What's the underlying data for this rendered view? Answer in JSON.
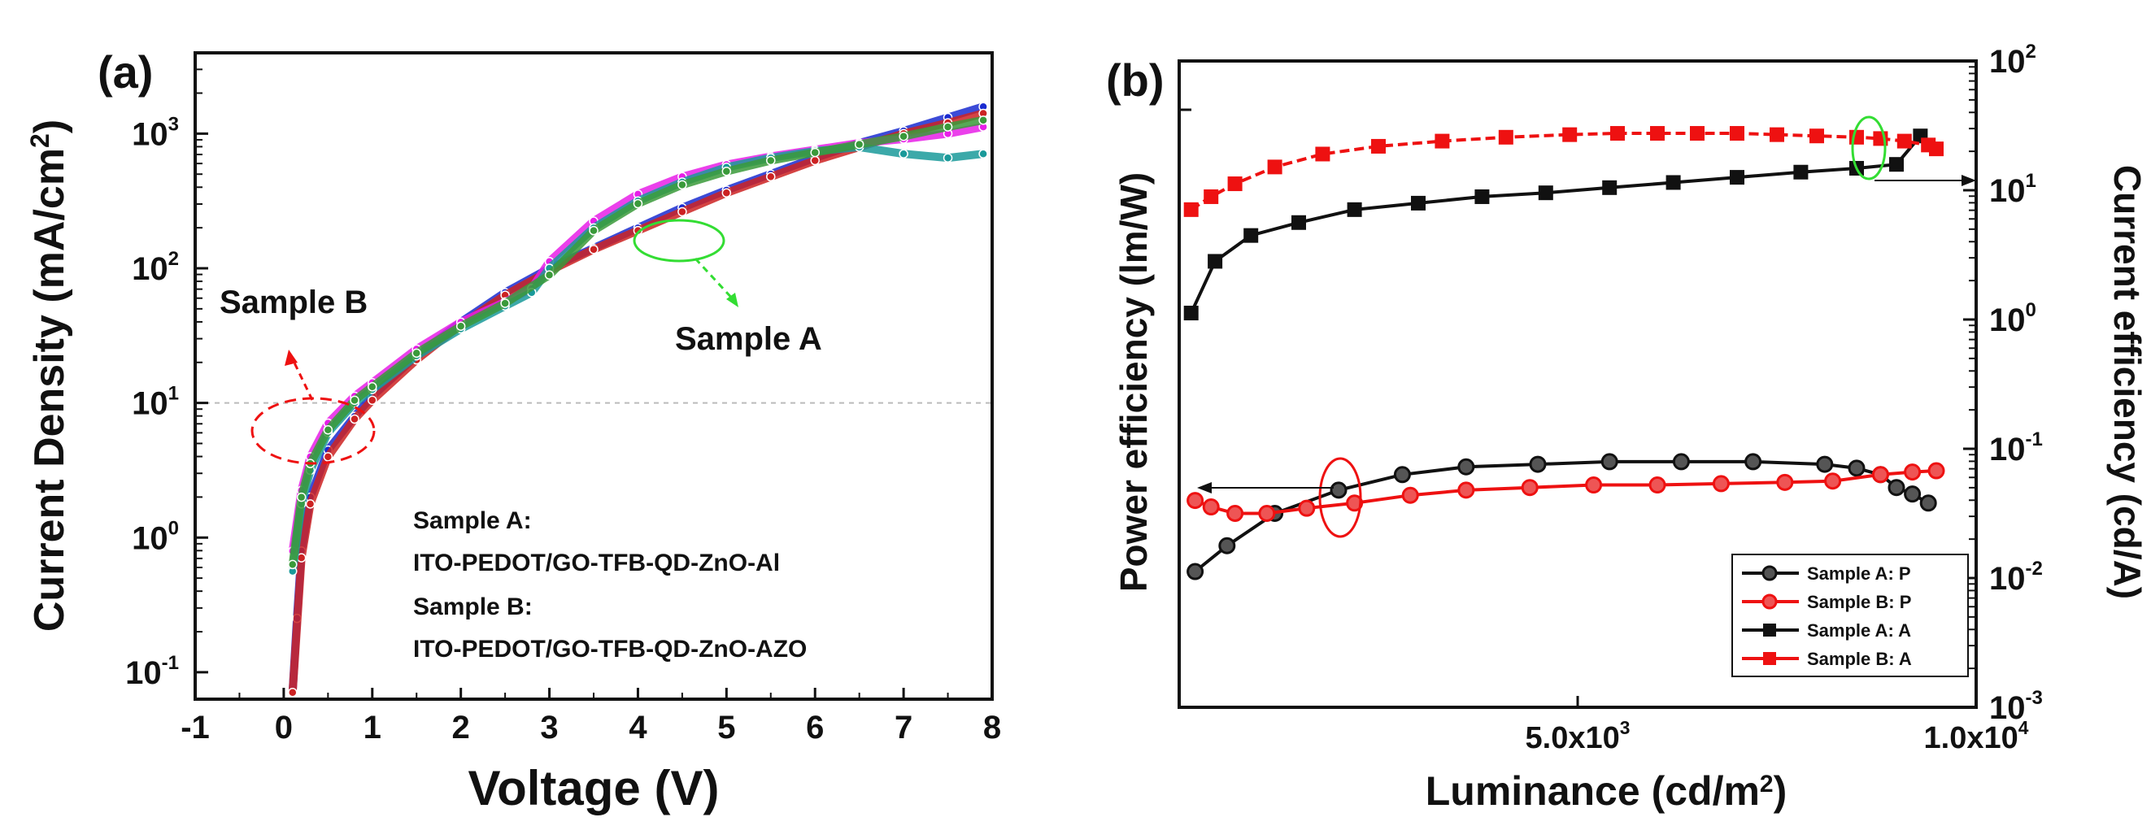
{
  "chart_data": [
    {
      "panel": "(a)",
      "type": "line",
      "xlabel": "Voltage (V)",
      "ylabel": "Current Density (mA/cm",
      "ylabel_sup": "2",
      "ylabel_close": ")",
      "xlim": [
        -1,
        8
      ],
      "ylim_log10": [
        -1.2,
        3.6
      ],
      "yscale": "log",
      "x_ticks": [
        "-1",
        "0",
        "1",
        "2",
        "3",
        "4",
        "5",
        "6",
        "7",
        "8"
      ],
      "y_ticks": [
        {
          "base": "10",
          "exp": "-1",
          "value": -1
        },
        {
          "base": "10",
          "exp": "0",
          "value": 0
        },
        {
          "base": "10",
          "exp": "1",
          "value": 1
        },
        {
          "base": "10",
          "exp": "2",
          "value": 2
        },
        {
          "base": "10",
          "exp": "3",
          "value": 3
        }
      ],
      "reference_line_log10": 1,
      "annotations": {
        "sample_b_label": "Sample B",
        "sample_a_label": "Sample A",
        "legend_line1": "Sample A:",
        "legend_line2": "ITO-PEDOT/GO-TFB-QD-ZnO-Al",
        "legend_line3": "Sample B:",
        "legend_line4": "ITO-PEDOT/GO-TFB-QD-ZnO-AZO"
      },
      "series": [
        {
          "name": "Sample A (blue)",
          "color": "#1a2bd0",
          "x": [
            0.1,
            0.15,
            0.2,
            0.3,
            0.5,
            0.8,
            1.0,
            1.5,
            2.0,
            2.5,
            3.0,
            3.5,
            4.0,
            4.5,
            5.0,
            5.5,
            6.0,
            6.5,
            7.0,
            7.5,
            7.9
          ],
          "log10y": [
            -1.15,
            -0.6,
            -0.1,
            0.3,
            0.65,
            0.9,
            1.05,
            1.35,
            1.6,
            1.82,
            2.0,
            2.15,
            2.3,
            2.45,
            2.58,
            2.7,
            2.82,
            2.93,
            3.02,
            3.12,
            3.2
          ]
        },
        {
          "name": "Sample A (red)",
          "color": "#cc2222",
          "x": [
            0.1,
            0.2,
            0.3,
            0.5,
            0.8,
            1.0,
            1.5,
            2.0,
            2.5,
            3.0,
            3.5,
            4.0,
            4.5,
            5.0,
            5.5,
            6.0,
            6.5,
            7.0,
            7.5,
            7.9
          ],
          "log10y": [
            -1.15,
            -0.15,
            0.25,
            0.6,
            0.88,
            1.02,
            1.32,
            1.58,
            1.8,
            1.98,
            2.14,
            2.28,
            2.42,
            2.56,
            2.68,
            2.8,
            2.9,
            3.0,
            3.08,
            3.15
          ]
        },
        {
          "name": "Sample B (magenta)",
          "color": "#e81ee8",
          "x": [
            0.1,
            0.2,
            0.3,
            0.5,
            0.8,
            1.0,
            1.5,
            2.0,
            2.5,
            2.8,
            3.0,
            3.5,
            4.0,
            4.5,
            5.0,
            5.5,
            6.0,
            6.5,
            7.0,
            7.5,
            7.9
          ],
          "log10y": [
            -0.1,
            0.35,
            0.6,
            0.85,
            1.05,
            1.15,
            1.4,
            1.6,
            1.75,
            1.85,
            2.05,
            2.35,
            2.55,
            2.68,
            2.77,
            2.83,
            2.88,
            2.93,
            2.96,
            3.0,
            3.05
          ]
        },
        {
          "name": "Sample B (teal)",
          "color": "#1a9a9a",
          "x": [
            0.1,
            0.2,
            0.3,
            0.5,
            0.8,
            1.0,
            1.5,
            2.0,
            2.5,
            2.8,
            3.0,
            3.5,
            4.0,
            4.5,
            5.0,
            5.5,
            6.0,
            6.5,
            7.0,
            7.5,
            7.9
          ],
          "log10y": [
            -0.25,
            0.25,
            0.5,
            0.78,
            1.0,
            1.1,
            1.35,
            1.55,
            1.72,
            1.82,
            2.0,
            2.3,
            2.5,
            2.64,
            2.75,
            2.82,
            2.87,
            2.9,
            2.85,
            2.82,
            2.85
          ]
        },
        {
          "name": "Sample B (green)",
          "color": "#3a9a3a",
          "x": [
            0.1,
            0.2,
            0.3,
            0.5,
            0.8,
            1.0,
            1.5,
            2.0,
            2.5,
            3.0,
            3.5,
            4.0,
            4.5,
            5.0,
            5.5,
            6.0,
            6.5,
            7.0,
            7.5,
            7.9
          ],
          "log10y": [
            -0.2,
            0.3,
            0.55,
            0.8,
            1.02,
            1.12,
            1.37,
            1.57,
            1.74,
            1.95,
            2.28,
            2.48,
            2.62,
            2.72,
            2.8,
            2.86,
            2.92,
            2.98,
            3.05,
            3.1
          ]
        }
      ]
    },
    {
      "panel": "(b)",
      "type": "line",
      "xlabel": "Luminance (cd/m",
      "xlabel_sup": "2",
      "xlabel_close": ")",
      "ylabel_left": "Power efficiency (lm/W)",
      "ylabel_right": "Current efficiency (cd/A)",
      "xlim": [
        0,
        10000
      ],
      "x_ticks": [
        {
          "label": "5.0x10",
          "exp": "3",
          "value": 5000
        },
        {
          "label": "1.0x10",
          "exp": "4",
          "value": 10000
        }
      ],
      "right_yscale": "log",
      "right_ylim_log10": [
        -3,
        2
      ],
      "right_y_ticks": [
        {
          "base": "10",
          "exp": "-3",
          "value": -3
        },
        {
          "base": "10",
          "exp": "-2",
          "value": -2
        },
        {
          "base": "10",
          "exp": "-1",
          "value": -1
        },
        {
          "base": "10",
          "exp": "0",
          "value": 0
        },
        {
          "base": "10",
          "exp": "1",
          "value": 1
        },
        {
          "base": "10",
          "exp": "2",
          "value": 2
        }
      ],
      "legend": {
        "position": "bottom-right",
        "entries": [
          {
            "label": "Sample A: P",
            "color": "#111111",
            "marker": "circle"
          },
          {
            "label": "Sample B: P",
            "color": "#ee1111",
            "marker": "circle"
          },
          {
            "label": "Sample A: A",
            "color": "#111111",
            "marker": "square"
          },
          {
            "label": "Sample B: A",
            "color": "#ee1111",
            "marker": "square"
          }
        ]
      },
      "series": [
        {
          "name": "Sample A: P",
          "color": "#111111",
          "marker": "circle",
          "x": [
            200,
            600,
            1200,
            2000,
            2800,
            3600,
            4500,
            5400,
            6300,
            7200,
            8100,
            8500,
            8800,
            9000,
            9200,
            9400
          ],
          "log10y_right": [
            -1.95,
            -1.75,
            -1.5,
            -1.32,
            -1.2,
            -1.14,
            -1.12,
            -1.1,
            -1.1,
            -1.1,
            -1.12,
            -1.15,
            -1.2,
            -1.3,
            -1.35,
            -1.42
          ]
        },
        {
          "name": "Sample B: P",
          "color": "#ee1111",
          "marker": "circle",
          "x": [
            200,
            400,
            700,
            1100,
            1600,
            2200,
            2900,
            3600,
            4400,
            5200,
            6000,
            6800,
            7600,
            8200,
            8800,
            9200,
            9500
          ],
          "log10y_right": [
            -1.4,
            -1.45,
            -1.5,
            -1.5,
            -1.46,
            -1.42,
            -1.36,
            -1.32,
            -1.3,
            -1.28,
            -1.28,
            -1.27,
            -1.26,
            -1.25,
            -1.2,
            -1.18,
            -1.17
          ]
        },
        {
          "name": "Sample A: A",
          "color": "#111111",
          "marker": "square",
          "x": [
            150,
            450,
            900,
            1500,
            2200,
            3000,
            3800,
            4600,
            5400,
            6200,
            7000,
            7800,
            8500,
            9000,
            9300
          ],
          "log10y_right": [
            0.05,
            0.45,
            0.65,
            0.75,
            0.85,
            0.9,
            0.95,
            0.98,
            1.02,
            1.06,
            1.1,
            1.14,
            1.17,
            1.2,
            1.42
          ]
        },
        {
          "name": "Sample B: A",
          "color": "#ee1111",
          "marker": "square",
          "x": [
            150,
            400,
            700,
            1200,
            1800,
            2500,
            3300,
            4100,
            4900,
            5500,
            6000,
            6500,
            7000,
            7500,
            8000,
            8500,
            8800,
            9100,
            9400,
            9500
          ],
          "log10y_right": [
            0.85,
            0.95,
            1.05,
            1.18,
            1.28,
            1.34,
            1.38,
            1.41,
            1.43,
            1.44,
            1.44,
            1.44,
            1.44,
            1.43,
            1.42,
            1.41,
            1.4,
            1.38,
            1.35,
            1.32
          ]
        }
      ]
    }
  ]
}
